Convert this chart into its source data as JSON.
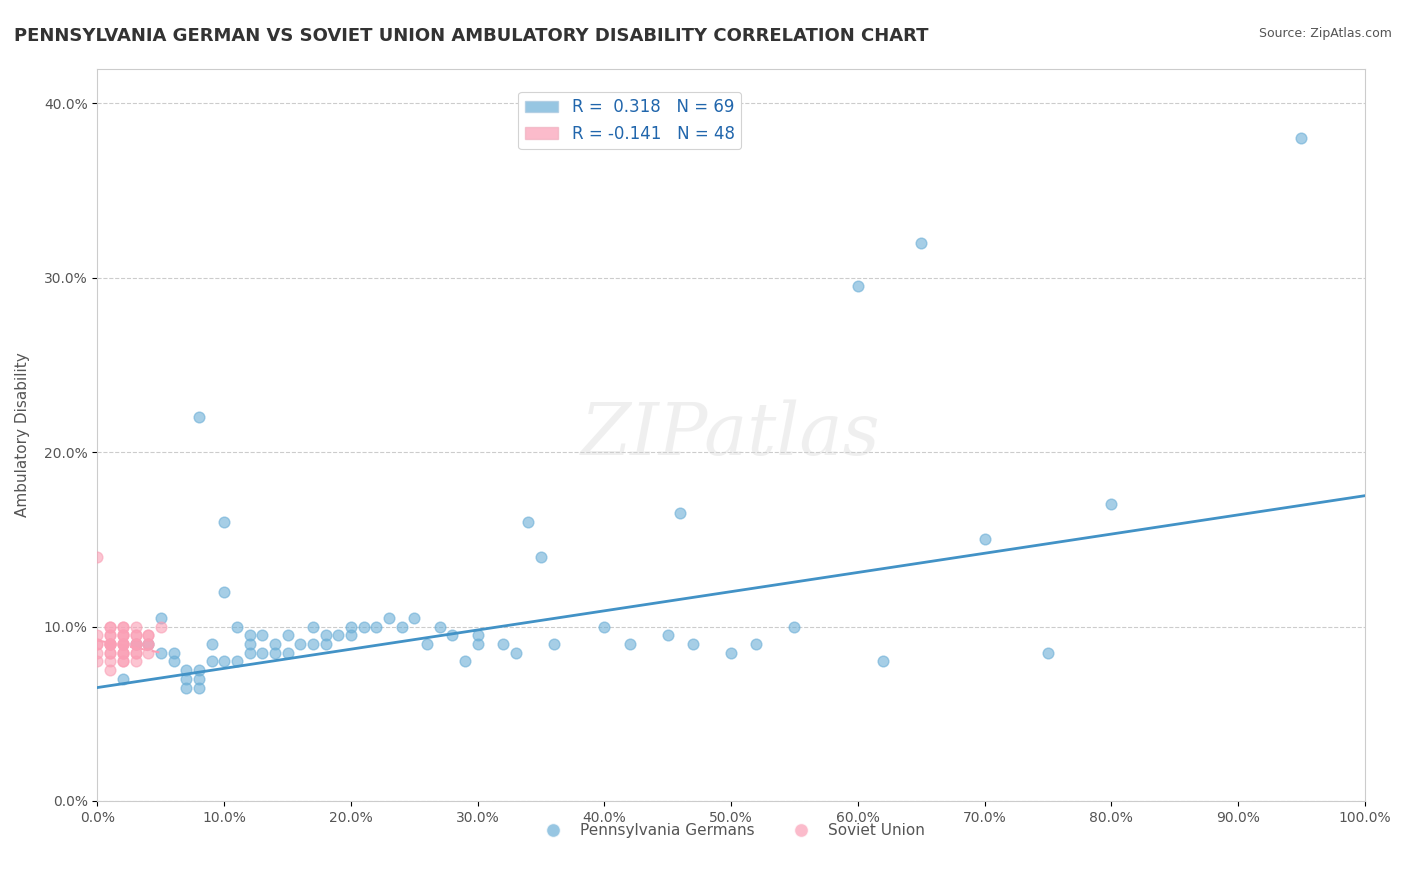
{
  "title": "PENNSYLVANIA GERMAN VS SOVIET UNION AMBULATORY DISABILITY CORRELATION CHART",
  "source": "Source: ZipAtlas.com",
  "ylabel": "Ambulatory Disability",
  "xlabel": "",
  "watermark": "ZIPatlas",
  "xlim": [
    0.0,
    1.0
  ],
  "ylim": [
    0.0,
    0.42
  ],
  "xticks": [
    0.0,
    0.1,
    0.2,
    0.3,
    0.4,
    0.5,
    0.6,
    0.7,
    0.8,
    0.9,
    1.0
  ],
  "yticks": [
    0.0,
    0.1,
    0.2,
    0.3,
    0.4
  ],
  "ytick_labels": [
    "0.0%",
    "10.0%",
    "20.0%",
    "30.0%",
    "40.0%"
  ],
  "xtick_labels": [
    "0.0%",
    "10.0%",
    "20.0%",
    "30.0%",
    "40.0%",
    "50.0%",
    "60.0%",
    "70.0%",
    "80.0%",
    "90.0%",
    "100.0%"
  ],
  "legend_r1": "R =  0.318   N = 69",
  "legend_r2": "R = -0.141   N = 48",
  "blue_color": "#6baed6",
  "pink_color": "#fa9fb5",
  "trend_blue": "#4292c6",
  "trend_pink": "#fa9fb5",
  "blue_scatter_x": [
    0.02,
    0.03,
    0.04,
    0.05,
    0.05,
    0.06,
    0.06,
    0.07,
    0.07,
    0.07,
    0.08,
    0.08,
    0.08,
    0.08,
    0.09,
    0.09,
    0.1,
    0.1,
    0.1,
    0.11,
    0.11,
    0.12,
    0.12,
    0.12,
    0.13,
    0.13,
    0.14,
    0.14,
    0.15,
    0.15,
    0.16,
    0.17,
    0.17,
    0.18,
    0.18,
    0.19,
    0.2,
    0.2,
    0.21,
    0.22,
    0.23,
    0.24,
    0.25,
    0.26,
    0.27,
    0.28,
    0.29,
    0.3,
    0.3,
    0.32,
    0.33,
    0.34,
    0.35,
    0.36,
    0.4,
    0.42,
    0.45,
    0.46,
    0.47,
    0.5,
    0.52,
    0.55,
    0.6,
    0.62,
    0.65,
    0.7,
    0.75,
    0.8,
    0.95
  ],
  "blue_scatter_y": [
    0.07,
    0.09,
    0.09,
    0.085,
    0.105,
    0.08,
    0.085,
    0.065,
    0.07,
    0.075,
    0.075,
    0.065,
    0.07,
    0.22,
    0.08,
    0.09,
    0.08,
    0.12,
    0.16,
    0.08,
    0.1,
    0.085,
    0.09,
    0.095,
    0.085,
    0.095,
    0.085,
    0.09,
    0.085,
    0.095,
    0.09,
    0.09,
    0.1,
    0.09,
    0.095,
    0.095,
    0.1,
    0.095,
    0.1,
    0.1,
    0.105,
    0.1,
    0.105,
    0.09,
    0.1,
    0.095,
    0.08,
    0.095,
    0.09,
    0.09,
    0.085,
    0.16,
    0.14,
    0.09,
    0.1,
    0.09,
    0.095,
    0.165,
    0.09,
    0.085,
    0.09,
    0.1,
    0.295,
    0.08,
    0.32,
    0.15,
    0.085,
    0.17,
    0.38
  ],
  "pink_scatter_x": [
    0.0,
    0.0,
    0.0,
    0.0,
    0.0,
    0.0,
    0.01,
    0.01,
    0.01,
    0.01,
    0.01,
    0.01,
    0.01,
    0.01,
    0.01,
    0.01,
    0.01,
    0.01,
    0.01,
    0.02,
    0.02,
    0.02,
    0.02,
    0.02,
    0.02,
    0.02,
    0.02,
    0.02,
    0.02,
    0.02,
    0.02,
    0.02,
    0.02,
    0.03,
    0.03,
    0.03,
    0.03,
    0.03,
    0.03,
    0.03,
    0.03,
    0.03,
    0.04,
    0.04,
    0.04,
    0.04,
    0.04,
    0.05
  ],
  "pink_scatter_y": [
    0.14,
    0.09,
    0.08,
    0.085,
    0.09,
    0.095,
    0.075,
    0.08,
    0.085,
    0.085,
    0.09,
    0.09,
    0.09,
    0.09,
    0.09,
    0.095,
    0.095,
    0.1,
    0.1,
    0.08,
    0.08,
    0.085,
    0.085,
    0.085,
    0.09,
    0.09,
    0.09,
    0.09,
    0.095,
    0.095,
    0.095,
    0.1,
    0.1,
    0.08,
    0.085,
    0.085,
    0.09,
    0.09,
    0.09,
    0.095,
    0.095,
    0.1,
    0.085,
    0.09,
    0.09,
    0.095,
    0.095,
    0.1
  ],
  "blue_trend_x": [
    0.0,
    1.0
  ],
  "blue_trend_y": [
    0.065,
    0.175
  ],
  "pink_trend_x": [
    0.0,
    0.05
  ],
  "pink_trend_y": [
    0.092,
    0.085
  ],
  "legend_entries": [
    "Pennsylvania Germans",
    "Soviet Union"
  ],
  "bg_color": "#ffffff",
  "grid_color": "#cccccc",
  "title_color": "#333333",
  "axis_label_color": "#555555",
  "tick_color": "#555555",
  "source_color": "#555555",
  "legend_text_color": "#2166ac"
}
